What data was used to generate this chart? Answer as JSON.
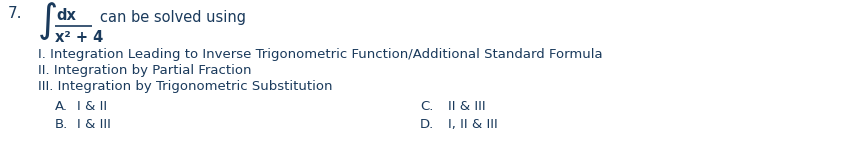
{
  "background_color": "#ffffff",
  "text_color": "#1a3a5c",
  "question_number": "7.",
  "integral_symbol": "∫",
  "numerator": "dx",
  "denominator": "x² + 4",
  "intro": "can be solved using",
  "roman_I": "I. Integration Leading to Inverse Trigonometric Function/Additional Standard Formula",
  "roman_II": "II. Integration by Partial Fraction",
  "roman_III": "III. Integration by Trigonometric Substitution",
  "choice_A_label": "A.",
  "choice_A_text": "I & II",
  "choice_B_label": "B.",
  "choice_B_text": "I & III",
  "choice_C_label": "C.",
  "choice_C_text": "II & III",
  "choice_D_label": "D.",
  "choice_D_text": "I, II & III",
  "fig_width": 8.42,
  "fig_height": 1.68,
  "dpi": 100
}
